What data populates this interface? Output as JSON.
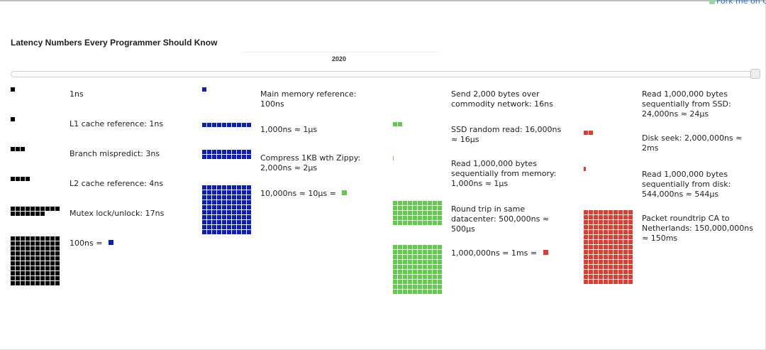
{
  "header": {
    "title": "Latency Numbers Every Programmer Should Know",
    "year": "2020",
    "fork_link": "Fork me on GitHub"
  },
  "slider": {
    "value_label": "2020",
    "position_fraction": 1.0
  },
  "colors": {
    "black": "#000000",
    "blue": "#0b1ec6",
    "green": "#5fcc4a",
    "red": "#e23c2e"
  },
  "items": [
    {
      "label": "1ns",
      "color": "black",
      "cells": 1,
      "cols": 1
    },
    {
      "label": "L1 cache reference: 1ns",
      "color": "black",
      "cells": 1,
      "cols": 1
    },
    {
      "label": "Branch mispredict: 3ns",
      "color": "black",
      "cells": 3,
      "cols": 3
    },
    {
      "label": "L2 cache reference: 4ns",
      "color": "black",
      "cells": 4,
      "cols": 4
    },
    {
      "label": "Mutex lock/unlock: 17ns",
      "color": "black",
      "cells": 17,
      "cols": 10
    },
    {
      "label": "100ns = ",
      "color": "black",
      "cells": 100,
      "cols": 10,
      "swatch": "blue"
    },
    {
      "label": "Main memory reference: 100ns",
      "color": "blue",
      "cells": 1,
      "cols": 1
    },
    {
      "label": "1,000ns ≈ 1µs",
      "color": "blue",
      "cells": 10,
      "cols": 10
    },
    {
      "label": "Compress 1KB wth Zippy: 2,000ns ≈ 2µs",
      "color": "blue",
      "cells": 20,
      "cols": 10
    },
    {
      "label": "10,000ns ≈ 10µs = ",
      "color": "blue",
      "cells": 100,
      "cols": 10,
      "swatch": "green"
    },
    {
      "label": "Send 2,000 bytes over commodity network: 16ns",
      "color": "green",
      "cells": 0,
      "cols": 1
    },
    {
      "label": "SSD random read: 16,000ns ≈ 16µs",
      "color": "green",
      "cells": 2,
      "cols": 2
    },
    {
      "label": "Read 1,000,000 bytes sequentially from memory: 1,000ns ≈ 1µs",
      "color": "green",
      "cells": 0.1,
      "cols": 1
    },
    {
      "label": "Round trip in same datacenter: 500,000ns ≈ 500µs",
      "color": "green",
      "cells": 50,
      "cols": 10
    },
    {
      "label": "1,000,000ns = 1ms = ",
      "color": "green",
      "cells": 100,
      "cols": 10,
      "swatch": "red"
    },
    {
      "label": "Read 1,000,000 bytes sequentially from SSD: 24,000ns ≈ 24µs",
      "color": "red",
      "cells": 0,
      "cols": 1
    },
    {
      "label": "Disk seek: 2,000,000ns ≈ 2ms",
      "color": "red",
      "cells": 2,
      "cols": 2
    },
    {
      "label": "Read 1,000,000 bytes sequentially from disk: 544,000ns ≈ 544µs",
      "color": "red",
      "cells": 0.544,
      "cols": 1
    },
    {
      "label": "Packet roundtrip CA to Netherlands: 150,000,000ns ≈ 150ms",
      "color": "red",
      "cells": 150,
      "cols": 10
    }
  ]
}
